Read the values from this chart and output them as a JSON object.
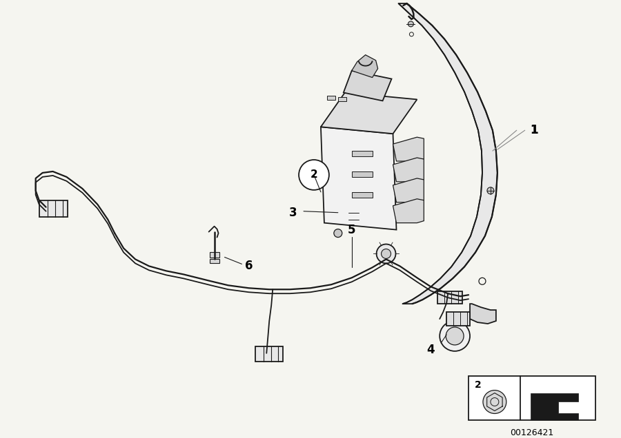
{
  "bg_color": "#f5f5f0",
  "line_color": "#1a1a1a",
  "lw": 1.3,
  "fig_w": 9.0,
  "fig_h": 6.36,
  "dpi": 100,
  "catalog_number": "00126421",
  "label_1": "1",
  "label_2": "2",
  "label_3": "3",
  "label_4": "4",
  "label_5": "5",
  "label_6": "6"
}
